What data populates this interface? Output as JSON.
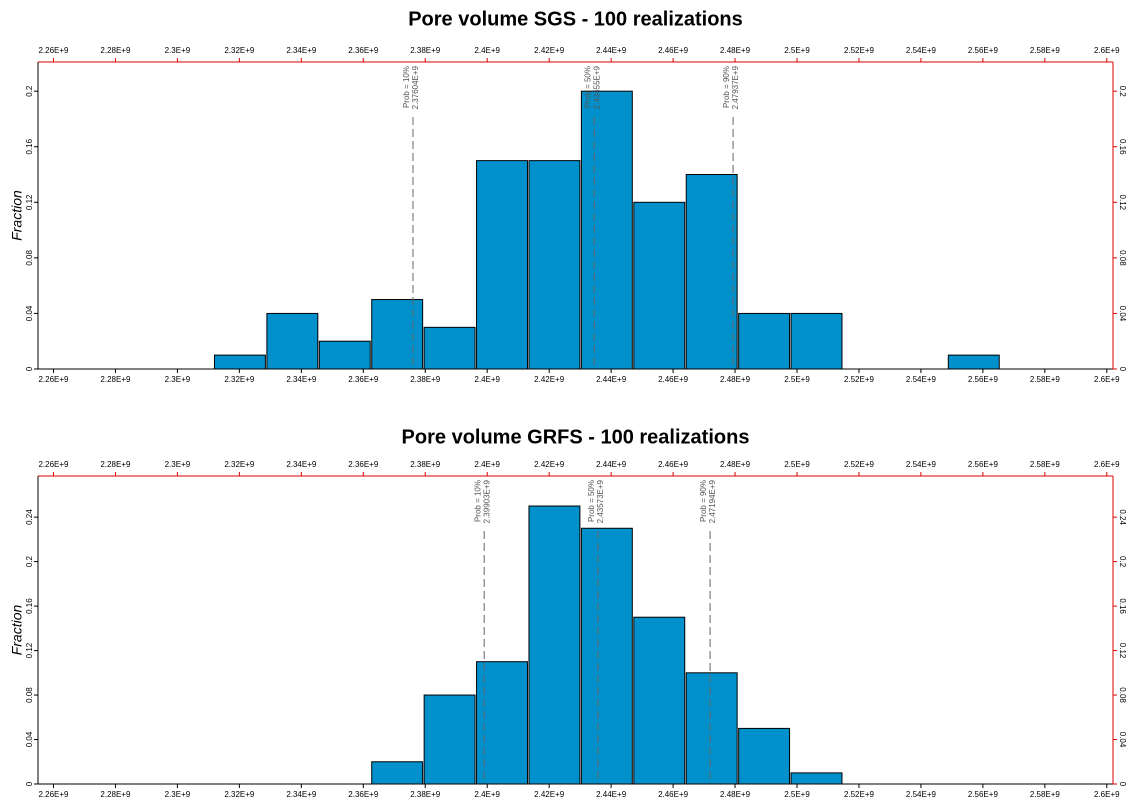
{
  "chart_data": [
    {
      "type": "histogram",
      "title": "Pore volume SGS - 100 realizations",
      "y_label": "Fraction",
      "color": "#0090cc",
      "bins": [
        2311800000,
        2328720000,
        2345640000,
        2362560000,
        2379480000,
        2396400000,
        2413320000,
        2430240000,
        2447160000,
        2464080000,
        2481000000,
        2497920000,
        2514840000,
        2531760000,
        2548680000,
        2565600000
      ],
      "values": [
        0.01,
        0.04,
        0.02,
        0.05,
        0.03,
        0.15,
        0.15,
        0.2,
        0.12,
        0.14,
        0.04,
        0.04,
        0,
        0,
        0.01
      ],
      "xlim": [
        2255000000,
        2602000000
      ],
      "xticks": [
        {
          "value": 2260000000,
          "label": "2.26E+9"
        },
        {
          "value": 2280000000,
          "label": "2.28E+9"
        },
        {
          "value": 2300000000,
          "label": "2.3E+9"
        },
        {
          "value": 2320000000,
          "label": "2.32E+9"
        },
        {
          "value": 2340000000,
          "label": "2.34E+9"
        },
        {
          "value": 2360000000,
          "label": "2.36E+9"
        },
        {
          "value": 2380000000,
          "label": "2.38E+9"
        },
        {
          "value": 2400000000,
          "label": "2.4E+9"
        },
        {
          "value": 2420000000,
          "label": "2.42E+9"
        },
        {
          "value": 2440000000,
          "label": "2.44E+9"
        },
        {
          "value": 2460000000,
          "label": "2.46E+9"
        },
        {
          "value": 2480000000,
          "label": "2.48E+9"
        },
        {
          "value": 2500000000,
          "label": "2.5E+9"
        },
        {
          "value": 2520000000,
          "label": "2.52E+9"
        },
        {
          "value": 2540000000,
          "label": "2.54E+9"
        },
        {
          "value": 2560000000,
          "label": "2.56E+9"
        },
        {
          "value": 2580000000,
          "label": "2.58E+9"
        },
        {
          "value": 2600000000,
          "label": "2.6E+9"
        }
      ],
      "ylim": [
        0,
        0.221
      ],
      "yticks": [
        0,
        0.04,
        0.08,
        0.12,
        0.16,
        0.2
      ],
      "annotations": [
        {
          "label": "Prob = 10%",
          "value": 2376040000,
          "value_label": "2.37604E+9"
        },
        {
          "label": "Prob = 50%",
          "value": 2434550000,
          "value_label": "2.43455E+9"
        },
        {
          "label": "Prob = 90%",
          "value": 2479370000,
          "value_label": "2.47937E+9"
        }
      ]
    },
    {
      "type": "histogram",
      "title": "Pore volume GRFS - 100 realizations",
      "y_label": "Fraction",
      "color": "#0090cc",
      "bins": [
        2362560000,
        2379480000,
        2396400000,
        2413320000,
        2430240000,
        2447160000,
        2464080000,
        2481000000,
        2497920000,
        2514840000
      ],
      "values": [
        0.02,
        0.08,
        0.11,
        0.25,
        0.23,
        0.15,
        0.1,
        0.05,
        0.01
      ],
      "xlim": [
        2255000000,
        2602000000
      ],
      "xticks": [
        {
          "value": 2260000000,
          "label": "2.26E+9"
        },
        {
          "value": 2280000000,
          "label": "2.28E+9"
        },
        {
          "value": 2300000000,
          "label": "2.3E+9"
        },
        {
          "value": 2320000000,
          "label": "2.32E+9"
        },
        {
          "value": 2340000000,
          "label": "2.34E+9"
        },
        {
          "value": 2360000000,
          "label": "2.36E+9"
        },
        {
          "value": 2380000000,
          "label": "2.38E+9"
        },
        {
          "value": 2400000000,
          "label": "2.4E+9"
        },
        {
          "value": 2420000000,
          "label": "2.42E+9"
        },
        {
          "value": 2440000000,
          "label": "2.44E+9"
        },
        {
          "value": 2460000000,
          "label": "2.46E+9"
        },
        {
          "value": 2480000000,
          "label": "2.48E+9"
        },
        {
          "value": 2500000000,
          "label": "2.5E+9"
        },
        {
          "value": 2520000000,
          "label": "2.52E+9"
        },
        {
          "value": 2540000000,
          "label": "2.54E+9"
        },
        {
          "value": 2560000000,
          "label": "2.56E+9"
        },
        {
          "value": 2580000000,
          "label": "2.58E+9"
        },
        {
          "value": 2600000000,
          "label": "2.6E+9"
        }
      ],
      "ylim": [
        0,
        0.277
      ],
      "yticks": [
        0,
        0.04,
        0.08,
        0.12,
        0.16,
        0.2,
        0.24
      ],
      "annotations": [
        {
          "label": "Prob = 10%",
          "value": 2399030000,
          "value_label": "2.39903E+9"
        },
        {
          "label": "Prob = 50%",
          "value": 2435730000,
          "value_label": "2.43573E+9"
        },
        {
          "label": "Prob = 90%",
          "value": 2471940000,
          "value_label": "2.47194E+9"
        }
      ]
    }
  ]
}
